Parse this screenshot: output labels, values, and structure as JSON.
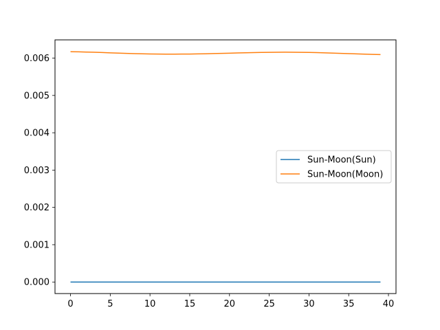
{
  "chart_data": {
    "type": "line",
    "title": "",
    "xlabel": "",
    "ylabel": "",
    "xlim": [
      -1.95,
      40.95
    ],
    "ylim": [
      -0.000309,
      0.006489
    ],
    "xticks": [
      0,
      5,
      10,
      15,
      20,
      25,
      30,
      35,
      40
    ],
    "yticks": [
      0.0,
      0.001,
      0.002,
      0.003,
      0.004,
      0.005,
      0.006
    ],
    "ytick_labels": [
      "0.000",
      "0.001",
      "0.002",
      "0.003",
      "0.004",
      "0.005",
      "0.006"
    ],
    "grid": false,
    "legend_placement": "center-right",
    "x": [
      0,
      1,
      2,
      3,
      4,
      5,
      6,
      7,
      8,
      9,
      10,
      11,
      12,
      13,
      14,
      15,
      16,
      17,
      18,
      19,
      20,
      21,
      22,
      23,
      24,
      25,
      26,
      27,
      28,
      29,
      30,
      31,
      32,
      33,
      34,
      35,
      36,
      37,
      38,
      39
    ],
    "series": [
      {
        "name": "Sun-Moon(Sun)",
        "color": "#1f77b4",
        "values": [
          0,
          0,
          0,
          0,
          0,
          0,
          0,
          0,
          0,
          0,
          0,
          0,
          0,
          0,
          0,
          0,
          0,
          0,
          0,
          0,
          0,
          0,
          0,
          0,
          0,
          0,
          0,
          0,
          0,
          0,
          0,
          0,
          0,
          0,
          0,
          0,
          0,
          0,
          0,
          0
        ]
      },
      {
        "name": "Sun-Moon(Moon)",
        "color": "#ff7f0e",
        "values": [
          0.006171,
          0.006168,
          0.006163,
          0.006157,
          0.00615,
          0.006142,
          0.006134,
          0.006127,
          0.00612,
          0.006115,
          0.006111,
          0.006108,
          0.006107,
          0.006107,
          0.006108,
          0.00611,
          0.006113,
          0.006117,
          0.006122,
          0.006127,
          0.006133,
          0.006139,
          0.006144,
          0.006149,
          0.006153,
          0.006156,
          0.006158,
          0.006159,
          0.006158,
          0.006156,
          0.006152,
          0.006147,
          0.006141,
          0.006134,
          0.006127,
          0.00612,
          0.006113,
          0.006106,
          0.0061,
          0.006095
        ]
      }
    ]
  }
}
